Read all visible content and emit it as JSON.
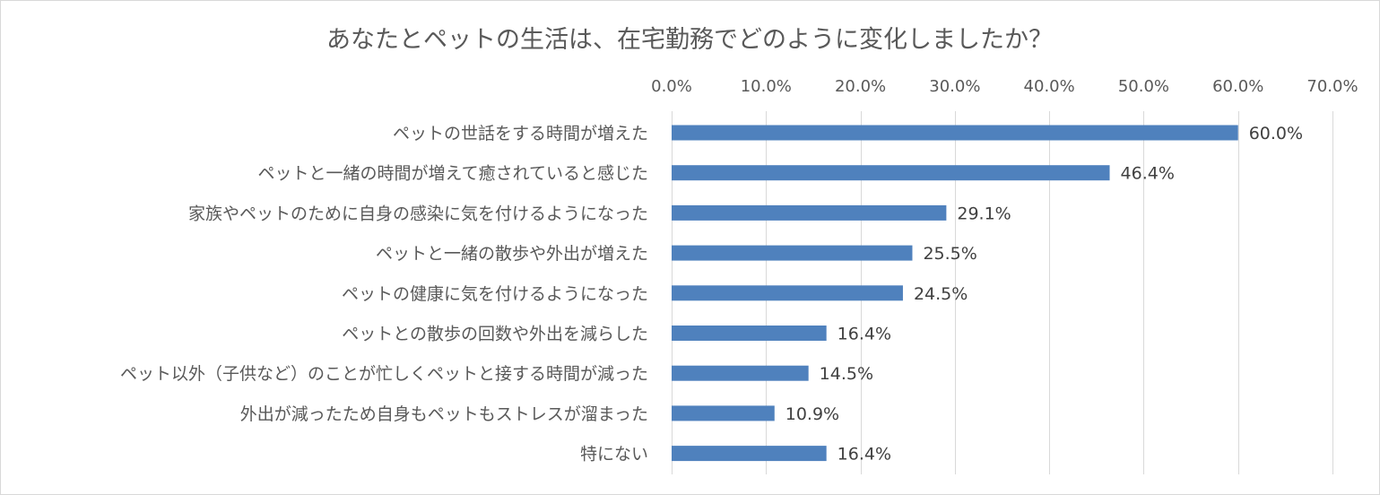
{
  "chart_data": {
    "type": "bar",
    "orientation": "horizontal",
    "title": "あなたとペットの生活は、在宅勤務でどのように変化しましたか？",
    "xlabel": "",
    "ylabel": "",
    "x_axis_position": "top",
    "xlim": [
      0,
      70
    ],
    "ticks": [
      "0.0%",
      "10.0%",
      "20.0%",
      "30.0%",
      "40.0%",
      "50.0%",
      "60.0%",
      "70.0%"
    ],
    "grid": true,
    "legend": "none",
    "bar_color": "#4f81bd",
    "categories": [
      "ペットの世話をする時間が増えた",
      "ペットと一緒の時間が増えて癒されていると感じた",
      "家族やペットのために自身の感染に気を付けるようになった",
      "ペットと一緒の散歩や外出が増えた",
      "ペットの健康に気を付けるようになった",
      "ペットとの散歩の回数や外出を減らした",
      "ペット以外（子供など）のことが忙しくペットと接する時間が減った",
      "外出が減ったため自身もペットもストレスが溜まった",
      "特にない"
    ],
    "values": [
      60.0,
      46.4,
      29.1,
      25.5,
      24.5,
      16.4,
      14.5,
      10.9,
      16.4
    ],
    "value_labels": [
      "60.0%",
      "46.4%",
      "29.1%",
      "25.5%",
      "24.5%",
      "16.4%",
      "14.5%",
      "10.9%",
      "16.4%"
    ]
  }
}
